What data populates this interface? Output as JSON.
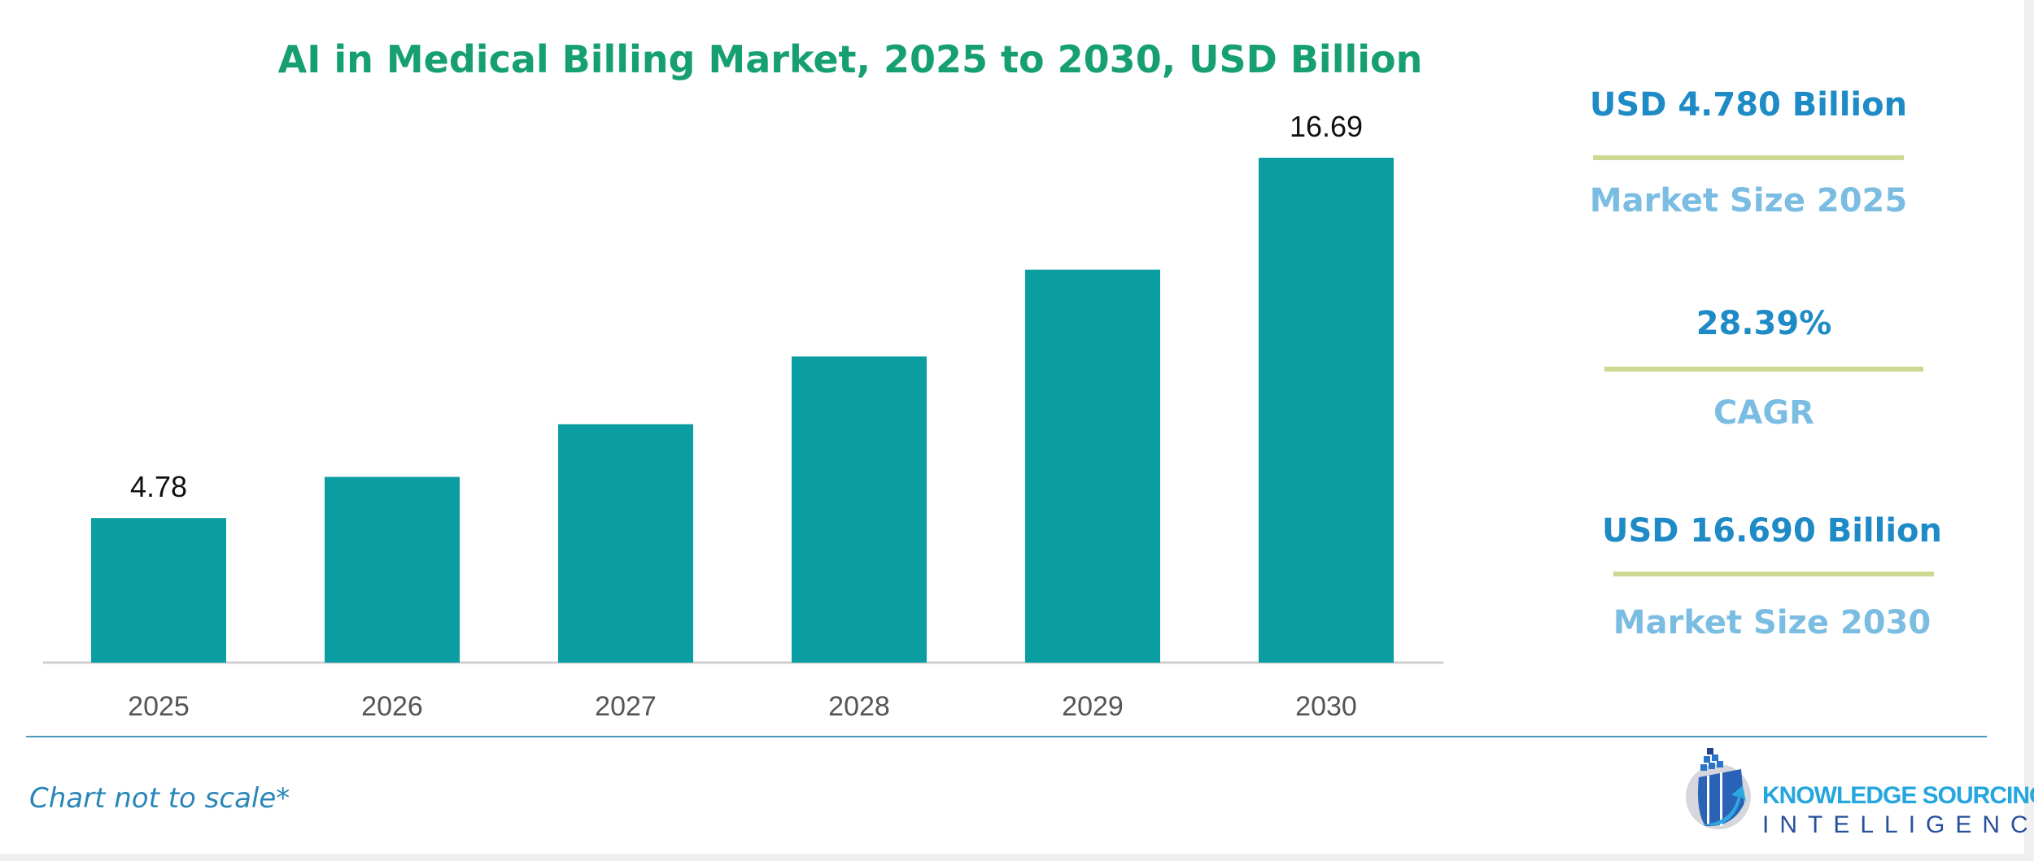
{
  "chart_data": {
    "type": "bar",
    "title": "AI in Medical Billing Market, 2025 to 2030, USD Billion",
    "categories": [
      "2025",
      "2026",
      "2027",
      "2028",
      "2029",
      "2030"
    ],
    "values": [
      4.78,
      6.14,
      7.88,
      10.12,
      12.99,
      16.69
    ],
    "data_labels": {
      "2025": "4.78",
      "2030": "16.69"
    },
    "xlabel": "",
    "ylabel": "",
    "ylim": [
      0,
      17
    ],
    "grid": false,
    "bar_color": "#0a9ea3"
  },
  "summary": {
    "start_value": "USD 4.780 Billion",
    "start_label": "Market Size 2025",
    "cagr_value": "28.39%",
    "cagr_label": "CAGR",
    "end_value": "USD 16.690 Billion",
    "end_label": "Market Size 2030"
  },
  "footnote": "Chart not to scale*",
  "logo": {
    "line1": "KNOWLEDGE SOURCING",
    "line2": "INTELLIGENCE"
  },
  "colors": {
    "title": "#17a06f",
    "accent_blue": "#1e8bc6",
    "light_blue": "#7bbde2",
    "rule": "#cbd992"
  }
}
